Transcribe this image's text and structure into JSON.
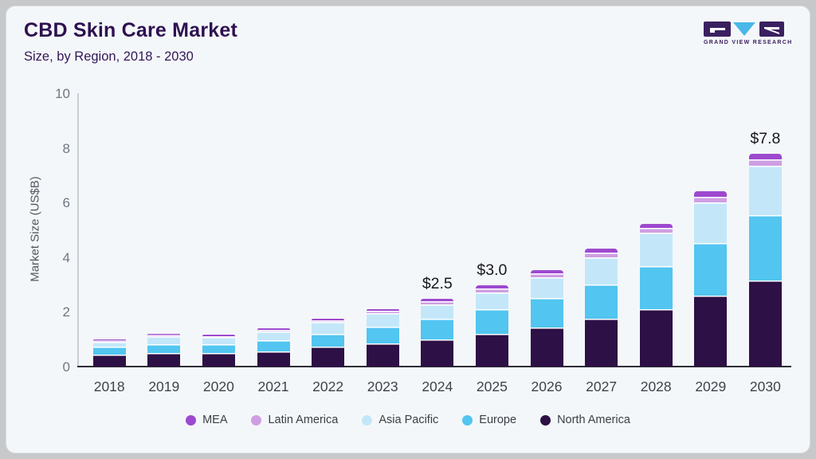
{
  "header": {
    "title": "CBD Skin Care Market",
    "subtitle": "Size, by Region, 2018 - 2030"
  },
  "logo": {
    "brand": "GRAND VIEW RESEARCH",
    "block_color": "#3b2060",
    "triangle_color": "#49b8e8"
  },
  "chart_data": {
    "type": "bar",
    "stacked": true,
    "title": "CBD Skin Care Market Size, by Region, 2018 - 2030",
    "xlabel": "",
    "ylabel": "Market Size (US$B)",
    "ylim": [
      0,
      10
    ],
    "yticks": [
      0,
      2,
      4,
      6,
      8,
      10
    ],
    "grid": false,
    "legend_position": "bottom",
    "categories": [
      "2018",
      "2019",
      "2020",
      "2021",
      "2022",
      "2023",
      "2024",
      "2025",
      "2026",
      "2027",
      "2028",
      "2029",
      "2030"
    ],
    "series": [
      {
        "name": "North America",
        "color": "#2d1045",
        "values": [
          0.45,
          0.52,
          0.52,
          0.58,
          0.75,
          0.86,
          1.02,
          1.22,
          1.44,
          1.77,
          2.12,
          2.6,
          3.16
        ]
      },
      {
        "name": "Europe",
        "color": "#52c5f0",
        "values": [
          0.28,
          0.31,
          0.31,
          0.41,
          0.47,
          0.62,
          0.76,
          0.91,
          1.09,
          1.26,
          1.58,
          1.95,
          2.39
        ]
      },
      {
        "name": "Asia Pacific",
        "color": "#c3e7f9",
        "values": [
          0.2,
          0.3,
          0.26,
          0.32,
          0.42,
          0.49,
          0.51,
          0.6,
          0.76,
          0.97,
          1.22,
          1.47,
          1.83
        ]
      },
      {
        "name": "Latin America",
        "color": "#cf9fe3",
        "values": [
          0.04,
          0.05,
          0.04,
          0.06,
          0.07,
          0.08,
          0.13,
          0.15,
          0.14,
          0.18,
          0.17,
          0.21,
          0.23
        ]
      },
      {
        "name": "MEA",
        "color": "#9d49cf",
        "values": [
          0.03,
          0.04,
          0.04,
          0.04,
          0.06,
          0.08,
          0.08,
          0.1,
          0.12,
          0.15,
          0.16,
          0.2,
          0.19
        ]
      }
    ],
    "legend_order": [
      "MEA",
      "Latin America",
      "Asia Pacific",
      "Europe",
      "North America"
    ],
    "annotations": [
      {
        "category": "2024",
        "label": "$2.5"
      },
      {
        "category": "2025",
        "label": "$3.0"
      },
      {
        "category": "2030",
        "label": "$7.8"
      }
    ]
  }
}
